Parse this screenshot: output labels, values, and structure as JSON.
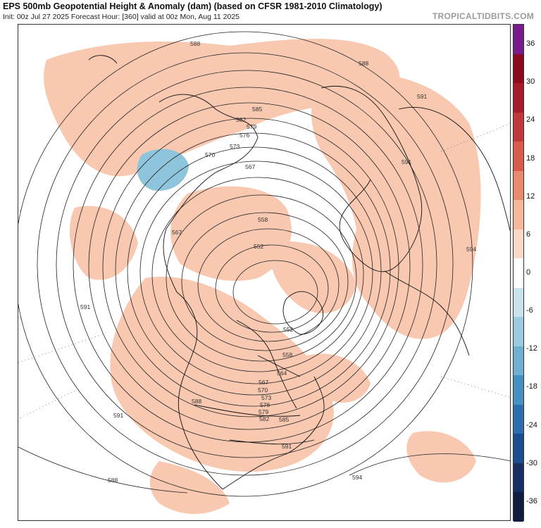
{
  "header": {
    "title": "EPS 500mb Geopotential Height & Anomaly (dam) (based on CFSR 1981-2010 Climatology)",
    "subtitle": "Init: 00z Jul 27 2025   Forecast Hour: [360]   valid at 00z Mon, Aug 11 2025",
    "brand": "TROPICALTIDBITS.COM"
  },
  "colorbar": {
    "ticks": [
      "36",
      "30",
      "24",
      "18",
      "12",
      "6",
      "0",
      "-6",
      "-12",
      "-18",
      "-24",
      "-30",
      "-36"
    ],
    "colors": [
      "#7b1a8c",
      "#8b0a1c",
      "#a8192b",
      "#c4383c",
      "#d95b4d",
      "#e98a6f",
      "#f6b899",
      "#fbd9c4",
      "#ffffff",
      "#c9e4ee",
      "#9ccbe0",
      "#6fb0d3",
      "#4890c3",
      "#2b6fb0",
      "#1c4d8f",
      "#163064",
      "#0f1d40"
    ]
  },
  "contour_labels": [
    "585",
    "588",
    "591",
    "582",
    "579",
    "576",
    "573",
    "570",
    "567",
    "558",
    "552",
    "594",
    "591",
    "588",
    "567",
    "552",
    "558",
    "564",
    "567",
    "570",
    "573",
    "576",
    "579",
    "582",
    "585",
    "588",
    "591",
    "594",
    "591",
    "588",
    "591"
  ],
  "colors": {
    "positive_anomaly": "#f8c8b0",
    "negative_anomaly": "#8ec5dc",
    "contour": "#222222",
    "coast": "#111111"
  }
}
